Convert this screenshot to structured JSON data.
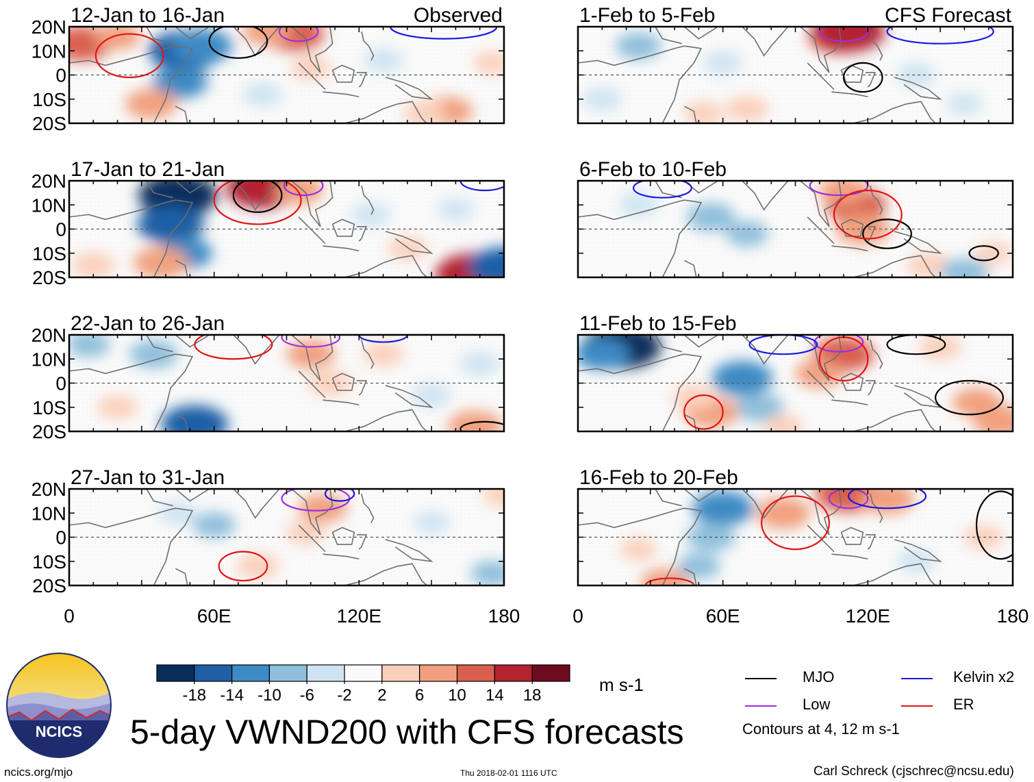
{
  "chart_data": {
    "type": "heatmap",
    "title": "5-day VWND200 with CFS forecasts",
    "variable": "VWND200",
    "units": "m s-1",
    "xlim": [
      0,
      180
    ],
    "ylim": [
      -20,
      20
    ],
    "x_ticks": [
      {
        "value": 0,
        "label": "0"
      },
      {
        "value": 60,
        "label": "60E"
      },
      {
        "value": 120,
        "label": "120E"
      },
      {
        "value": 180,
        "label": "180"
      }
    ],
    "y_ticks": [
      {
        "value": 20,
        "label": "20N"
      },
      {
        "value": 10,
        "label": "10N"
      },
      {
        "value": 0,
        "label": "0"
      },
      {
        "value": -10,
        "label": "10S"
      },
      {
        "value": -20,
        "label": "20S"
      }
    ],
    "colorbar": {
      "levels": [
        "-18",
        "-14",
        "-10",
        "-6",
        "-2",
        "2",
        "6",
        "10",
        "14",
        "18"
      ],
      "colors": [
        "#0a2e5c",
        "#1f5fa6",
        "#3d8ac4",
        "#8fbfdc",
        "#cfe4f1",
        "#fafafa",
        "#fbd0bb",
        "#f1a07f",
        "#d9604f",
        "#b42330",
        "#6c0a1e"
      ]
    },
    "contours": {
      "note": "Contours at 4, 12 m s-1",
      "legend": [
        {
          "label": "MJO",
          "color": "#000000"
        },
        {
          "label": "Kelvin x2",
          "color": "#1a1ae0"
        },
        {
          "label": "Low",
          "color": "#9b30e0"
        },
        {
          "label": "ER",
          "color": "#e01414"
        }
      ]
    },
    "panels": [
      {
        "period": "12-Jan to 16-Jan",
        "tag": "Observed",
        "column": "left",
        "blobs": [
          {
            "lon": 48,
            "lat": 10,
            "val": -16
          },
          {
            "lon": 55,
            "lat": 12,
            "val": -12
          },
          {
            "lon": 46,
            "lat": -3,
            "val": -10
          },
          {
            "lon": 5,
            "lat": 13,
            "val": 12
          },
          {
            "lon": 20,
            "lat": 16,
            "val": 7
          },
          {
            "lon": 93,
            "lat": 17,
            "val": 12
          },
          {
            "lon": 82,
            "lat": 18,
            "val": 8
          },
          {
            "lon": 34,
            "lat": -12,
            "val": 9
          },
          {
            "lon": 157,
            "lat": -15,
            "val": 8
          },
          {
            "lon": 147,
            "lat": -16,
            "val": 6
          },
          {
            "lon": 100,
            "lat": 3,
            "val": 5
          },
          {
            "lon": 80,
            "lat": -8,
            "val": -5
          },
          {
            "lon": 130,
            "lat": 6,
            "val": -5
          },
          {
            "lon": 175,
            "lat": 5,
            "val": 4
          }
        ],
        "contours": [
          {
            "type": "MJO",
            "lon": 70,
            "lat": 14,
            "rx": 12,
            "ry": 7
          },
          {
            "type": "Low",
            "lon": 95,
            "lat": 18,
            "rx": 8,
            "ry": 4
          },
          {
            "type": "Kelvin x2",
            "lon": 155,
            "lat": 20,
            "rx": 22,
            "ry": 5
          },
          {
            "type": "ER",
            "lon": 25,
            "lat": 8,
            "rx": 14,
            "ry": 9
          }
        ]
      },
      {
        "period": "17-Jan to 21-Jan",
        "tag": "",
        "column": "left",
        "blobs": [
          {
            "lon": 45,
            "lat": 14,
            "val": -18
          },
          {
            "lon": 42,
            "lat": 2,
            "val": -14
          },
          {
            "lon": 48,
            "lat": -10,
            "val": -10
          },
          {
            "lon": 80,
            "lat": 17,
            "val": 16
          },
          {
            "lon": 95,
            "lat": 16,
            "val": 8
          },
          {
            "lon": 38,
            "lat": -14,
            "val": 10
          },
          {
            "lon": 168,
            "lat": -19,
            "val": 18
          },
          {
            "lon": 180,
            "lat": -16,
            "val": -16
          },
          {
            "lon": 10,
            "lat": -15,
            "val": 6
          },
          {
            "lon": 125,
            "lat": 6,
            "val": -5
          },
          {
            "lon": 140,
            "lat": -8,
            "val": 5
          },
          {
            "lon": 160,
            "lat": 8,
            "val": -4
          }
        ],
        "contours": [
          {
            "type": "MJO",
            "lon": 78,
            "lat": 14,
            "rx": 10,
            "ry": 7
          },
          {
            "type": "Low",
            "lon": 97,
            "lat": 18,
            "rx": 8,
            "ry": 4
          },
          {
            "type": "Kelvin x2",
            "lon": 172,
            "lat": 20,
            "rx": 10,
            "ry": 4
          },
          {
            "type": "ER",
            "lon": 78,
            "lat": 12,
            "rx": 18,
            "ry": 10
          }
        ]
      },
      {
        "period": "22-Jan to 26-Jan",
        "tag": "",
        "column": "left",
        "blobs": [
          {
            "lon": 52,
            "lat": -17,
            "val": -14
          },
          {
            "lon": 35,
            "lat": 12,
            "val": -8
          },
          {
            "lon": 8,
            "lat": 16,
            "val": -6
          },
          {
            "lon": 100,
            "lat": 12,
            "val": 8
          },
          {
            "lon": 108,
            "lat": 0,
            "val": 6
          },
          {
            "lon": 168,
            "lat": -18,
            "val": 10
          },
          {
            "lon": 130,
            "lat": 12,
            "val": 5
          },
          {
            "lon": 150,
            "lat": -5,
            "val": -5
          },
          {
            "lon": 20,
            "lat": -10,
            "val": 5
          },
          {
            "lon": 170,
            "lat": 8,
            "val": -5
          }
        ],
        "contours": [
          {
            "type": "MJO",
            "lon": 172,
            "lat": -19,
            "rx": 10,
            "ry": 3
          },
          {
            "type": "Low",
            "lon": 100,
            "lat": 19,
            "rx": 12,
            "ry": 4
          },
          {
            "type": "Kelvin x2",
            "lon": 130,
            "lat": 20,
            "rx": 10,
            "ry": 3
          },
          {
            "type": "ER",
            "lon": 68,
            "lat": 16,
            "rx": 16,
            "ry": 6
          }
        ]
      },
      {
        "period": "27-Jan to 31-Jan",
        "tag": "",
        "column": "left",
        "blobs": [
          {
            "lon": 105,
            "lat": 12,
            "val": 8
          },
          {
            "lon": 98,
            "lat": 2,
            "val": 5
          },
          {
            "lon": 60,
            "lat": 5,
            "val": -6
          },
          {
            "lon": 45,
            "lat": 10,
            "val": -5
          },
          {
            "lon": 78,
            "lat": -12,
            "val": 6
          },
          {
            "lon": 150,
            "lat": 6,
            "val": -4
          },
          {
            "lon": 175,
            "lat": -15,
            "val": -6
          },
          {
            "lon": 180,
            "lat": 18,
            "val": 6
          }
        ],
        "contours": [
          {
            "type": "Low",
            "lon": 102,
            "lat": 16,
            "rx": 14,
            "ry": 5
          },
          {
            "type": "Kelvin x2",
            "lon": 112,
            "lat": 18,
            "rx": 6,
            "ry": 3
          },
          {
            "type": "ER",
            "lon": 72,
            "lat": -12,
            "rx": 10,
            "ry": 6
          }
        ]
      },
      {
        "period": "1-Feb to 5-Feb",
        "tag": "CFS Forecast",
        "column": "right",
        "blobs": [
          {
            "lon": 25,
            "lat": 12,
            "val": -7
          },
          {
            "lon": 60,
            "lat": 5,
            "val": -5
          },
          {
            "lon": 108,
            "lat": 16,
            "val": 12
          },
          {
            "lon": 112,
            "lat": 18,
            "val": 16
          },
          {
            "lon": 52,
            "lat": -16,
            "val": 5
          },
          {
            "lon": 70,
            "lat": -14,
            "val": 6
          },
          {
            "lon": 140,
            "lat": 0,
            "val": -5
          },
          {
            "lon": 160,
            "lat": -12,
            "val": -4
          },
          {
            "lon": 10,
            "lat": -10,
            "val": -5
          }
        ],
        "contours": [
          {
            "type": "MJO",
            "lon": 118,
            "lat": -1,
            "rx": 8,
            "ry": 6
          },
          {
            "type": "Low",
            "lon": 110,
            "lat": 18,
            "rx": 10,
            "ry": 4
          },
          {
            "type": "Kelvin x2",
            "lon": 150,
            "lat": 18,
            "rx": 22,
            "ry": 5
          }
        ]
      },
      {
        "period": "6-Feb to 10-Feb",
        "tag": "",
        "column": "right",
        "blobs": [
          {
            "lon": 115,
            "lat": 10,
            "val": 12
          },
          {
            "lon": 118,
            "lat": 0,
            "val": 10
          },
          {
            "lon": 110,
            "lat": 16,
            "val": 8
          },
          {
            "lon": 145,
            "lat": -15,
            "val": 6
          },
          {
            "lon": 160,
            "lat": -18,
            "val": -8
          },
          {
            "lon": 55,
            "lat": 5,
            "val": -8
          },
          {
            "lon": 70,
            "lat": -2,
            "val": -6
          },
          {
            "lon": 25,
            "lat": 10,
            "val": -5
          },
          {
            "lon": 172,
            "lat": -10,
            "val": 4
          }
        ],
        "contours": [
          {
            "type": "MJO",
            "lon": 128,
            "lat": -2,
            "rx": 10,
            "ry": 6
          },
          {
            "type": "MJO",
            "lon": 168,
            "lat": -10,
            "rx": 6,
            "ry": 3
          },
          {
            "type": "Low",
            "lon": 108,
            "lat": 18,
            "rx": 12,
            "ry": 4
          },
          {
            "type": "Kelvin x2",
            "lon": 35,
            "lat": 17,
            "rx": 12,
            "ry": 4
          },
          {
            "type": "ER",
            "lon": 120,
            "lat": 6,
            "rx": 14,
            "ry": 10
          }
        ]
      },
      {
        "period": "11-Feb to 15-Feb",
        "tag": "",
        "column": "right",
        "blobs": [
          {
            "lon": 18,
            "lat": 15,
            "val": -18
          },
          {
            "lon": 10,
            "lat": 12,
            "val": -10
          },
          {
            "lon": 68,
            "lat": 2,
            "val": -12
          },
          {
            "lon": 75,
            "lat": -10,
            "val": -8
          },
          {
            "lon": 110,
            "lat": 12,
            "val": 12
          },
          {
            "lon": 100,
            "lat": 4,
            "val": 8
          },
          {
            "lon": 55,
            "lat": -12,
            "val": 10
          },
          {
            "lon": 48,
            "lat": -6,
            "val": 6
          },
          {
            "lon": 165,
            "lat": -8,
            "val": 8
          },
          {
            "lon": 150,
            "lat": 15,
            "val": 6
          },
          {
            "lon": 175,
            "lat": -16,
            "val": 10
          },
          {
            "lon": 85,
            "lat": -18,
            "val": 5
          }
        ],
        "contours": [
          {
            "type": "MJO",
            "lon": 162,
            "lat": -6,
            "rx": 14,
            "ry": 7
          },
          {
            "type": "MJO",
            "lon": 140,
            "lat": 16,
            "rx": 12,
            "ry": 4
          },
          {
            "type": "Low",
            "lon": 108,
            "lat": 17,
            "rx": 10,
            "ry": 4
          },
          {
            "type": "Kelvin x2",
            "lon": 85,
            "lat": 16,
            "rx": 14,
            "ry": 4
          },
          {
            "type": "ER",
            "lon": 52,
            "lat": -12,
            "rx": 8,
            "ry": 7
          },
          {
            "type": "ER",
            "lon": 110,
            "lat": 10,
            "rx": 10,
            "ry": 9
          }
        ]
      },
      {
        "period": "16-Feb to 20-Feb",
        "tag": "",
        "column": "right",
        "blobs": [
          {
            "lon": 60,
            "lat": 12,
            "val": -12
          },
          {
            "lon": 55,
            "lat": 0,
            "val": -8
          },
          {
            "lon": 50,
            "lat": -12,
            "val": -6
          },
          {
            "lon": 85,
            "lat": 10,
            "val": 10
          },
          {
            "lon": 112,
            "lat": 18,
            "val": 14
          },
          {
            "lon": 128,
            "lat": 16,
            "val": 10
          },
          {
            "lon": 168,
            "lat": 0,
            "val": 5
          },
          {
            "lon": 140,
            "lat": -10,
            "val": -5
          },
          {
            "lon": 25,
            "lat": -5,
            "val": 4
          },
          {
            "lon": 36,
            "lat": -19,
            "val": 8
          }
        ],
        "contours": [
          {
            "type": "MJO",
            "lon": 175,
            "lat": 5,
            "rx": 10,
            "ry": 14
          },
          {
            "type": "Low",
            "lon": 112,
            "lat": 16,
            "rx": 8,
            "ry": 4
          },
          {
            "type": "Kelvin x2",
            "lon": 128,
            "lat": 17,
            "rx": 16,
            "ry": 5
          },
          {
            "type": "ER",
            "lon": 90,
            "lat": 6,
            "rx": 14,
            "ry": 11
          },
          {
            "type": "ER",
            "lon": 38,
            "lat": -20,
            "rx": 10,
            "ry": 3
          }
        ]
      }
    ]
  },
  "title": "5-day VWND200 with CFS forecasts",
  "units": "m s-1",
  "contour_note": "Contours at 4, 12 m s-1",
  "logo": {
    "text": "NCICS"
  },
  "footer": {
    "left": "ncics.org/mjo",
    "middle": "Thu 2018-02-01 1116 UTC",
    "right": "Carl Schreck (cjschrec@ncsu.edu)"
  }
}
